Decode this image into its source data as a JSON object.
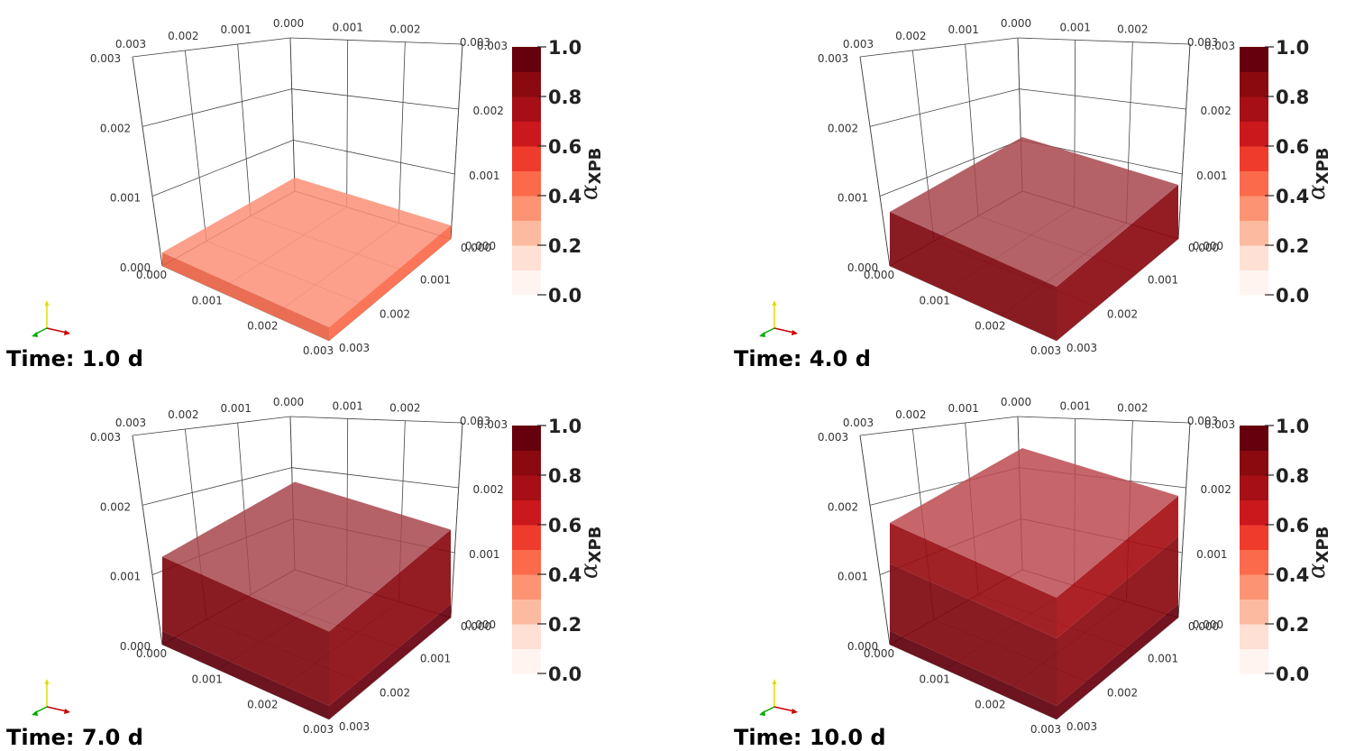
{
  "panels": [
    {
      "time_label": "Time: 1.0 d",
      "layers": [
        {
          "fraction": 0.1,
          "alpha_level": 0.45
        }
      ]
    },
    {
      "time_label": "Time: 4.0 d",
      "layers": [
        {
          "fraction": 0.4,
          "alpha_level": 0.85
        }
      ]
    },
    {
      "time_label": "Time: 7.0 d",
      "layers": [
        {
          "fraction": 0.1,
          "alpha_level": 0.95
        },
        {
          "fraction": 0.55,
          "alpha_level": 0.85
        }
      ]
    },
    {
      "time_label": "Time: 10.0 d",
      "layers": [
        {
          "fraction": 0.1,
          "alpha_level": 0.95
        },
        {
          "fraction": 0.5,
          "alpha_level": 0.85
        },
        {
          "fraction": 0.3,
          "alpha_level": 0.75
        }
      ]
    }
  ],
  "axes": {
    "tick_labels": [
      "0.000",
      "0.001",
      "0.002",
      "0.003"
    ]
  },
  "colorbar": {
    "title": "α",
    "title_subscript": "XPB",
    "ticks": [
      "0.0",
      "0.2",
      "0.4",
      "0.6",
      "0.8",
      "1.0"
    ],
    "colors": [
      "#fff4f0",
      "#fee0d4",
      "#fcbba1",
      "#fc9373",
      "#fb6a4a",
      "#ef3b2c",
      "#cb181d",
      "#a50f15",
      "#8a0a10",
      "#67000d"
    ]
  },
  "orientation_axes": {
    "x_color": "#cc0000",
    "y_color": "#00aa00",
    "z_color": "#dddd00"
  }
}
